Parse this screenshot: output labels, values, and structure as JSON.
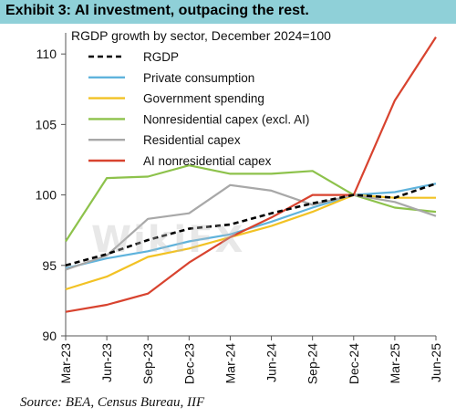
{
  "header": {
    "title": "Exhibit 3: AI investment, outpacing the rest."
  },
  "source": "Source: BEA, Census Bureau, IIF",
  "watermark": "WikiFX",
  "chart_data": {
    "type": "line",
    "legend_title": "RGDP growth by sector, December 2024=100",
    "legend_position": "top-left",
    "grid": false,
    "ylim": [
      90,
      111.5
    ],
    "yticks": [
      90,
      95,
      100,
      105,
      110
    ],
    "x": [
      "Mar-23",
      "Jun-23",
      "Sep-23",
      "Dec-23",
      "Mar-24",
      "Jun-24",
      "Sep-24",
      "Dec-24",
      "Mar-25",
      "Jun-25"
    ],
    "series": [
      {
        "name": "RGDP",
        "color": "#000000",
        "dashed": true,
        "values": [
          95.0,
          95.8,
          96.8,
          97.6,
          97.9,
          98.7,
          99.4,
          100.0,
          99.8,
          100.8
        ]
      },
      {
        "name": "Private consumption",
        "color": "#5fb3dc",
        "dashed": false,
        "values": [
          94.8,
          95.5,
          96.0,
          96.7,
          97.2,
          98.1,
          99.1,
          100.0,
          100.2,
          100.8
        ]
      },
      {
        "name": "Government spending",
        "color": "#f2c224",
        "dashed": false,
        "values": [
          93.3,
          94.2,
          95.6,
          96.2,
          97.0,
          97.8,
          98.8,
          100.0,
          99.8,
          99.8
        ]
      },
      {
        "name": "Nonresidential capex (excl. AI)",
        "color": "#8dc24b",
        "dashed": false,
        "values": [
          96.7,
          101.2,
          101.3,
          102.1,
          101.5,
          101.5,
          101.7,
          100.0,
          99.1,
          98.8
        ]
      },
      {
        "name": "Residential capex",
        "color": "#a8a8a8",
        "dashed": false,
        "values": [
          94.7,
          95.7,
          98.3,
          98.7,
          100.7,
          100.3,
          99.3,
          100.0,
          99.5,
          98.5
        ]
      },
      {
        "name": "AI nonresidential capex",
        "color": "#d8432f",
        "dashed": false,
        "values": [
          91.7,
          92.2,
          93.0,
          95.2,
          97.0,
          98.4,
          100.0,
          100.0,
          106.7,
          111.2
        ]
      }
    ]
  }
}
